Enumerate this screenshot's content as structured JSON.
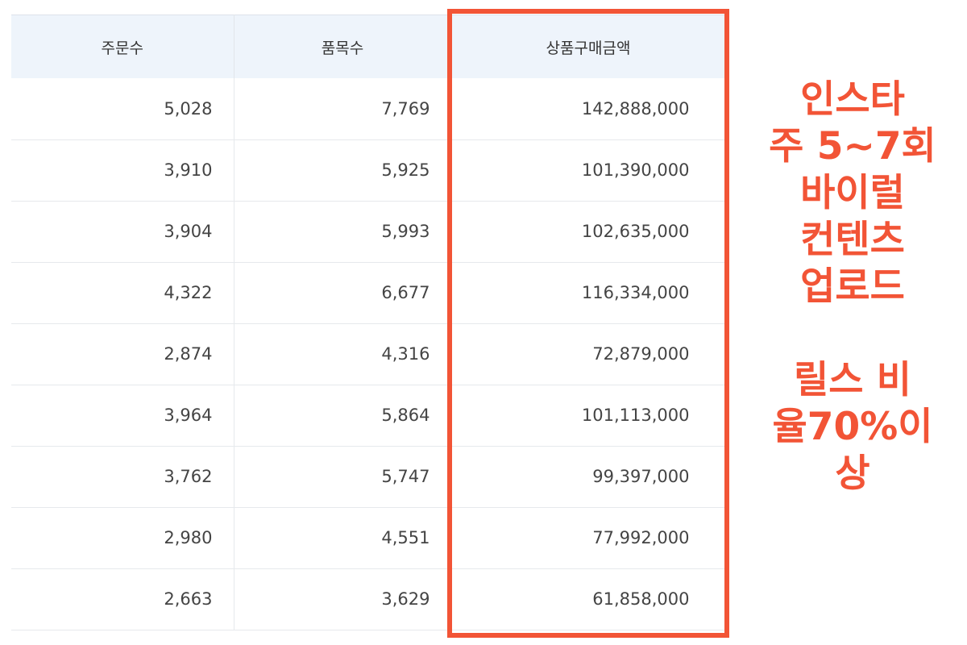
{
  "table": {
    "columns": [
      "주문수",
      "품목수",
      "상품구매금액"
    ],
    "rows": [
      [
        "5,028",
        "7,769",
        "142,888,000"
      ],
      [
        "3,910",
        "5,925",
        "101,390,000"
      ],
      [
        "3,904",
        "5,993",
        "102,635,000"
      ],
      [
        "4,322",
        "6,677",
        "116,334,000"
      ],
      [
        "2,874",
        "4,316",
        "72,879,000"
      ],
      [
        "3,964",
        "5,864",
        "101,113,000"
      ],
      [
        "3,762",
        "5,747",
        "99,397,000"
      ],
      [
        "2,980",
        "4,551",
        "77,992,000"
      ],
      [
        "2,663",
        "3,629",
        "61,858,000"
      ]
    ]
  },
  "annotation": {
    "color": "#f25436",
    "block1": [
      "인스타",
      "주 5~7회",
      "바이럴",
      "컨텐츠",
      "업로드"
    ],
    "block2": [
      "릴스 비",
      "율70%이",
      "상"
    ]
  }
}
